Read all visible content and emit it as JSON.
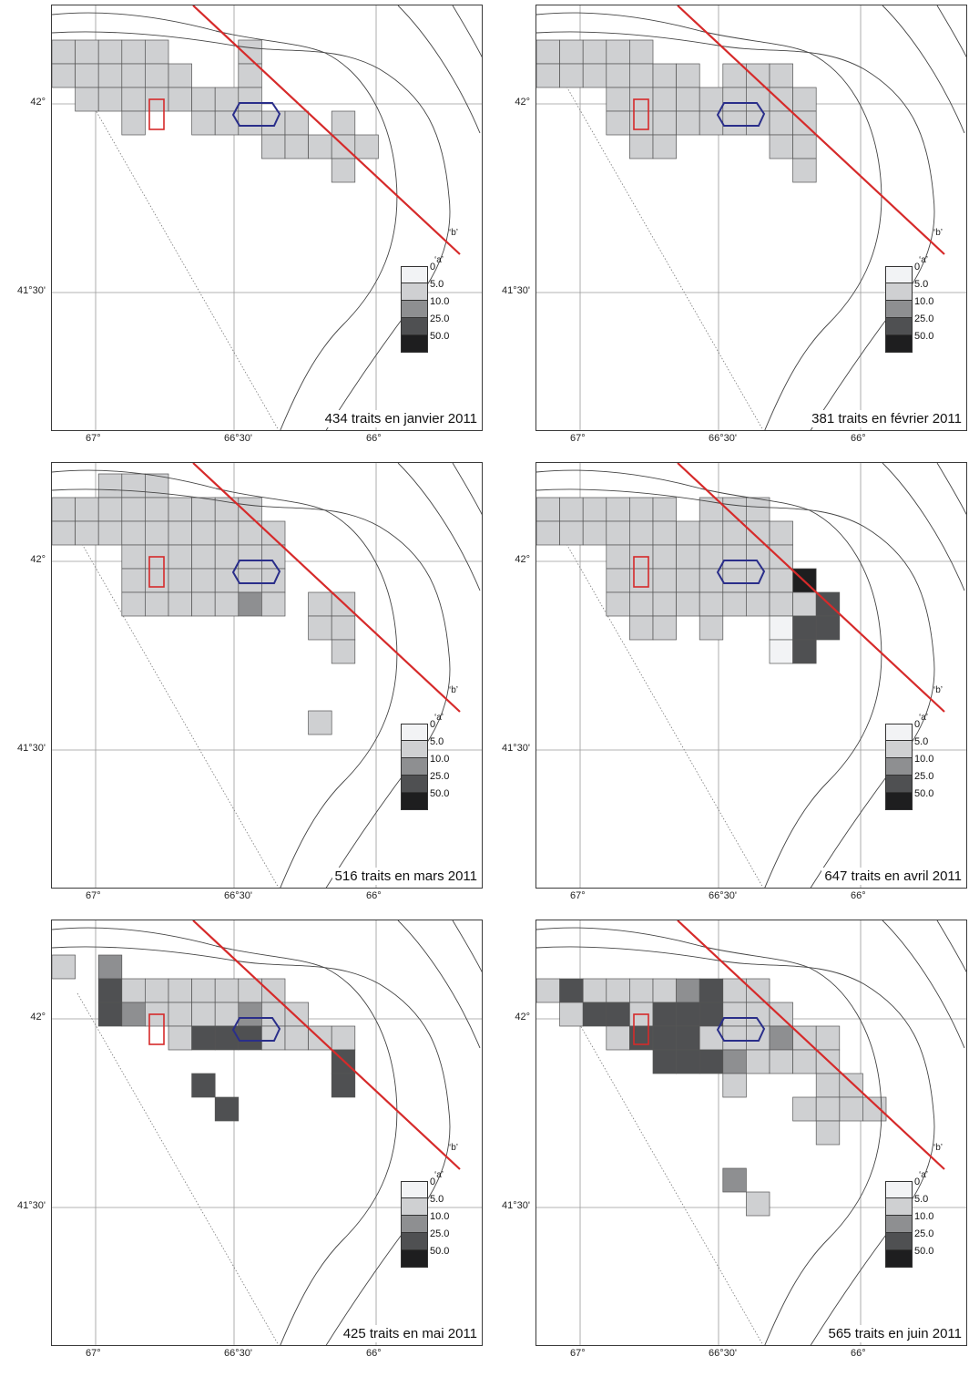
{
  "legend": {
    "classes": [
      {
        "label": "0",
        "color": "#f2f3f5"
      },
      {
        "label": "5.0",
        "color": "#cfd0d2"
      },
      {
        "label": "10.0",
        "color": "#8e8f91"
      },
      {
        "label": "25.0",
        "color": "#4f5052"
      },
      {
        "label": "50.0",
        "color": "#1e1e1f"
      }
    ]
  },
  "axes": {
    "lat_labels": [
      "42°",
      "41°30'"
    ],
    "lon_labels": [
      "67°",
      "66°30'",
      "66°"
    ]
  },
  "line_labels": {
    "b": "‘b’",
    "a": "‘a’"
  },
  "panels": [
    {
      "caption": "434 traits en janvier 2011",
      "cells": [
        [
          0,
          0,
          1,
          0
        ],
        [
          0,
          1,
          1,
          0
        ],
        [
          1,
          0,
          1,
          0
        ],
        [
          1,
          1,
          1,
          0
        ],
        [
          1,
          2,
          1,
          0
        ],
        [
          2,
          0,
          1,
          0
        ],
        [
          2,
          1,
          1,
          0
        ],
        [
          2,
          2,
          1,
          0
        ],
        [
          3,
          0,
          1,
          0
        ],
        [
          3,
          1,
          1,
          0
        ],
        [
          3,
          2,
          1,
          0
        ],
        [
          3,
          3,
          1,
          0
        ],
        [
          4,
          0,
          1,
          0
        ],
        [
          4,
          1,
          1,
          0
        ],
        [
          4,
          2,
          1,
          0
        ],
        [
          5,
          1,
          1,
          0
        ],
        [
          5,
          2,
          1,
          0
        ],
        [
          6,
          2,
          1,
          0
        ],
        [
          6,
          3,
          1,
          0
        ],
        [
          7,
          2,
          1,
          0
        ],
        [
          7,
          3,
          1,
          0
        ],
        [
          8,
          0,
          1,
          0
        ],
        [
          8,
          1,
          1,
          0
        ],
        [
          8,
          2,
          1,
          0
        ],
        [
          8,
          3,
          1,
          0
        ],
        [
          9,
          3,
          1,
          0
        ],
        [
          9,
          4,
          1,
          0
        ],
        [
          10,
          3,
          1,
          0
        ],
        [
          10,
          4,
          1,
          0
        ],
        [
          11,
          4,
          1,
          0
        ],
        [
          12,
          3,
          1,
          0
        ],
        [
          12,
          4,
          1,
          0
        ],
        [
          12,
          5,
          1,
          0
        ],
        [
          13,
          4,
          1,
          0
        ]
      ]
    },
    {
      "caption": "381 traits en février 2011",
      "cells": [
        [
          0,
          0,
          1,
          0
        ],
        [
          0,
          1,
          1,
          0
        ],
        [
          1,
          0,
          1,
          0
        ],
        [
          1,
          1,
          1,
          0
        ],
        [
          2,
          0,
          1,
          0
        ],
        [
          2,
          1,
          1,
          0
        ],
        [
          3,
          0,
          1,
          0
        ],
        [
          3,
          1,
          1,
          0
        ],
        [
          3,
          2,
          1,
          0
        ],
        [
          3,
          3,
          1,
          0
        ],
        [
          4,
          0,
          1,
          0
        ],
        [
          4,
          1,
          1,
          0
        ],
        [
          4,
          2,
          1,
          0
        ],
        [
          4,
          3,
          1,
          0
        ],
        [
          4,
          4,
          1,
          0
        ],
        [
          5,
          1,
          1,
          0
        ],
        [
          5,
          2,
          1,
          0
        ],
        [
          5,
          3,
          1,
          0
        ],
        [
          5,
          4,
          1,
          0
        ],
        [
          6,
          1,
          1,
          0
        ],
        [
          6,
          2,
          1,
          0
        ],
        [
          6,
          3,
          1,
          0
        ],
        [
          7,
          2,
          1,
          0
        ],
        [
          7,
          3,
          1,
          0
        ],
        [
          8,
          1,
          1,
          0
        ],
        [
          8,
          2,
          1,
          0
        ],
        [
          8,
          3,
          1,
          0
        ],
        [
          9,
          1,
          1,
          0
        ],
        [
          9,
          2,
          1,
          0
        ],
        [
          9,
          3,
          1,
          0
        ],
        [
          10,
          1,
          1,
          0
        ],
        [
          10,
          2,
          1,
          0
        ],
        [
          10,
          3,
          1,
          0
        ],
        [
          10,
          4,
          1,
          0
        ],
        [
          11,
          2,
          1,
          0
        ],
        [
          11,
          3,
          1,
          0
        ],
        [
          11,
          4,
          1,
          0
        ],
        [
          11,
          5,
          1,
          0
        ]
      ]
    },
    {
      "caption": "516 traits en mars 2011",
      "cells": [
        [
          0,
          0,
          1,
          0
        ],
        [
          0,
          1,
          1,
          0
        ],
        [
          1,
          0,
          1,
          0
        ],
        [
          1,
          1,
          1,
          0
        ],
        [
          2,
          -1,
          1,
          0
        ],
        [
          2,
          0,
          1,
          0
        ],
        [
          2,
          1,
          1,
          0
        ],
        [
          3,
          -1,
          1,
          0
        ],
        [
          3,
          0,
          1,
          0
        ],
        [
          3,
          1,
          1,
          0
        ],
        [
          3,
          2,
          1,
          0
        ],
        [
          3,
          3,
          1,
          0
        ],
        [
          3,
          4,
          1,
          0
        ],
        [
          4,
          -1,
          1,
          0
        ],
        [
          4,
          0,
          1,
          0
        ],
        [
          4,
          1,
          1,
          0
        ],
        [
          4,
          2,
          1,
          0
        ],
        [
          4,
          3,
          1,
          0
        ],
        [
          4,
          4,
          1,
          0
        ],
        [
          5,
          0,
          1,
          0
        ],
        [
          5,
          1,
          1,
          0
        ],
        [
          5,
          2,
          1,
          0
        ],
        [
          5,
          3,
          1,
          0
        ],
        [
          5,
          4,
          1,
          0
        ],
        [
          6,
          0,
          1,
          0
        ],
        [
          6,
          1,
          1,
          0
        ],
        [
          6,
          2,
          1,
          0
        ],
        [
          6,
          3,
          1,
          0
        ],
        [
          6,
          4,
          1,
          0
        ],
        [
          7,
          0,
          1,
          0
        ],
        [
          7,
          1,
          1,
          0
        ],
        [
          7,
          2,
          1,
          0
        ],
        [
          7,
          3,
          1,
          0
        ],
        [
          7,
          4,
          1,
          0
        ],
        [
          8,
          0,
          1,
          0
        ],
        [
          8,
          1,
          1,
          0
        ],
        [
          8,
          2,
          1,
          0
        ],
        [
          8,
          3,
          1,
          0
        ],
        [
          8,
          4,
          2,
          0
        ],
        [
          9,
          1,
          1,
          0
        ],
        [
          9,
          2,
          1,
          0
        ],
        [
          9,
          3,
          1,
          0
        ],
        [
          9,
          4,
          1,
          0
        ],
        [
          11,
          4,
          1,
          0
        ],
        [
          11,
          5,
          1,
          0
        ],
        [
          12,
          4,
          1,
          0
        ],
        [
          12,
          5,
          1,
          0
        ],
        [
          12,
          6,
          1,
          0
        ],
        [
          11,
          9,
          1,
          0
        ]
      ]
    },
    {
      "caption": "647 traits en avril 2011",
      "cells": [
        [
          0,
          0,
          1,
          0
        ],
        [
          0,
          1,
          1,
          0
        ],
        [
          1,
          0,
          1,
          0
        ],
        [
          1,
          1,
          1,
          0
        ],
        [
          2,
          0,
          1,
          0
        ],
        [
          2,
          1,
          1,
          0
        ],
        [
          3,
          0,
          1,
          0
        ],
        [
          3,
          1,
          1,
          0
        ],
        [
          3,
          2,
          1,
          0
        ],
        [
          3,
          3,
          1,
          0
        ],
        [
          3,
          4,
          1,
          0
        ],
        [
          4,
          0,
          1,
          0
        ],
        [
          4,
          1,
          1,
          0
        ],
        [
          4,
          2,
          1,
          0
        ],
        [
          4,
          3,
          1,
          0
        ],
        [
          4,
          4,
          1,
          0
        ],
        [
          4,
          5,
          1,
          0
        ],
        [
          5,
          0,
          1,
          0
        ],
        [
          5,
          1,
          1,
          0
        ],
        [
          5,
          2,
          1,
          0
        ],
        [
          5,
          3,
          1,
          0
        ],
        [
          5,
          4,
          1,
          0
        ],
        [
          5,
          5,
          1,
          0
        ],
        [
          6,
          1,
          1,
          0
        ],
        [
          6,
          2,
          1,
          0
        ],
        [
          6,
          3,
          1,
          0
        ],
        [
          6,
          4,
          1,
          0
        ],
        [
          7,
          0,
          1,
          0
        ],
        [
          7,
          1,
          1,
          0
        ],
        [
          7,
          2,
          1,
          0
        ],
        [
          7,
          3,
          1,
          0
        ],
        [
          7,
          4,
          1,
          0
        ],
        [
          7,
          5,
          1,
          0
        ],
        [
          8,
          0,
          1,
          0
        ],
        [
          8,
          1,
          1,
          0
        ],
        [
          8,
          2,
          1,
          0
        ],
        [
          8,
          3,
          1,
          0
        ],
        [
          8,
          4,
          1,
          0
        ],
        [
          9,
          0,
          1,
          0
        ],
        [
          9,
          1,
          1,
          0
        ],
        [
          9,
          2,
          1,
          0
        ],
        [
          9,
          3,
          1,
          0
        ],
        [
          9,
          4,
          1,
          0
        ],
        [
          10,
          1,
          1,
          0
        ],
        [
          10,
          2,
          1,
          0
        ],
        [
          10,
          3,
          1,
          0
        ],
        [
          10,
          4,
          1,
          0
        ],
        [
          10,
          5,
          0,
          1
        ],
        [
          10,
          6,
          5,
          1
        ],
        [
          11,
          3,
          4,
          1
        ],
        [
          11,
          4,
          1,
          0
        ],
        [
          11,
          5,
          3,
          1
        ],
        [
          11,
          6,
          3,
          1
        ],
        [
          12,
          4,
          3,
          1
        ],
        [
          12,
          5,
          3,
          1
        ]
      ]
    },
    {
      "caption": "425 traits en mai 2011",
      "cells": [
        [
          0,
          0,
          1,
          0
        ],
        [
          2,
          0,
          2,
          0
        ],
        [
          2,
          1,
          3,
          0
        ],
        [
          2,
          2,
          3,
          0
        ],
        [
          3,
          1,
          1,
          0
        ],
        [
          3,
          2,
          2,
          0
        ],
        [
          4,
          1,
          1,
          0
        ],
        [
          4,
          2,
          1,
          0
        ],
        [
          5,
          1,
          1,
          0
        ],
        [
          5,
          2,
          1,
          0
        ],
        [
          5,
          3,
          1,
          0
        ],
        [
          6,
          1,
          1,
          0
        ],
        [
          6,
          2,
          1,
          0
        ],
        [
          6,
          3,
          3,
          0
        ],
        [
          7,
          1,
          1,
          0
        ],
        [
          7,
          2,
          1,
          0
        ],
        [
          7,
          3,
          3,
          0
        ],
        [
          8,
          1,
          1,
          0
        ],
        [
          8,
          2,
          2,
          0
        ],
        [
          8,
          3,
          3,
          0
        ],
        [
          9,
          1,
          1,
          0
        ],
        [
          9,
          2,
          1,
          0
        ],
        [
          9,
          3,
          1,
          0
        ],
        [
          10,
          2,
          1,
          0
        ],
        [
          10,
          3,
          1,
          0
        ],
        [
          11,
          3,
          1,
          0
        ],
        [
          12,
          3,
          1,
          0
        ],
        [
          12,
          4,
          3,
          0
        ],
        [
          12,
          5,
          3,
          0
        ],
        [
          6,
          5,
          3,
          0
        ],
        [
          7,
          6,
          3,
          0
        ]
      ]
    },
    {
      "caption": "565 traits en juin 2011",
      "cells": [
        [
          0,
          1,
          1,
          0
        ],
        [
          1,
          1,
          3,
          0
        ],
        [
          1,
          2,
          1,
          0
        ],
        [
          2,
          1,
          1,
          0
        ],
        [
          2,
          2,
          3,
          0
        ],
        [
          3,
          1,
          1,
          0
        ],
        [
          3,
          2,
          3,
          0
        ],
        [
          3,
          3,
          1,
          0
        ],
        [
          4,
          1,
          1,
          0
        ],
        [
          4,
          2,
          1,
          0
        ],
        [
          4,
          3,
          3,
          0
        ],
        [
          5,
          1,
          1,
          0
        ],
        [
          5,
          2,
          3,
          0
        ],
        [
          5,
          3,
          3,
          0
        ],
        [
          5,
          4,
          3,
          0
        ],
        [
          6,
          1,
          2,
          0
        ],
        [
          6,
          2,
          3,
          0
        ],
        [
          6,
          3,
          3,
          0
        ],
        [
          6,
          4,
          3,
          0
        ],
        [
          7,
          1,
          3,
          0
        ],
        [
          7,
          2,
          3,
          0
        ],
        [
          7,
          3,
          1,
          0
        ],
        [
          7,
          4,
          3,
          0
        ],
        [
          8,
          1,
          1,
          0
        ],
        [
          8,
          2,
          1,
          0
        ],
        [
          8,
          3,
          1,
          0
        ],
        [
          8,
          4,
          2,
          0
        ],
        [
          9,
          1,
          1,
          0
        ],
        [
          9,
          2,
          1,
          0
        ],
        [
          9,
          3,
          1,
          0
        ],
        [
          9,
          4,
          1,
          0
        ],
        [
          10,
          2,
          1,
          0
        ],
        [
          10,
          3,
          2,
          0
        ],
        [
          10,
          4,
          1,
          0
        ],
        [
          11,
          3,
          1,
          0
        ],
        [
          11,
          4,
          1,
          0
        ],
        [
          12,
          3,
          1,
          0
        ],
        [
          12,
          4,
          1,
          0
        ],
        [
          12,
          5,
          1,
          0
        ],
        [
          13,
          5,
          1,
          0
        ],
        [
          13,
          6,
          1,
          0
        ],
        [
          14,
          6,
          1,
          0
        ],
        [
          11,
          6,
          1,
          0
        ],
        [
          12,
          6,
          1,
          0
        ],
        [
          12,
          7,
          1,
          0
        ],
        [
          8,
          5,
          1,
          0
        ],
        [
          8,
          9,
          2,
          0
        ],
        [
          9,
          10,
          1,
          0
        ]
      ]
    }
  ]
}
